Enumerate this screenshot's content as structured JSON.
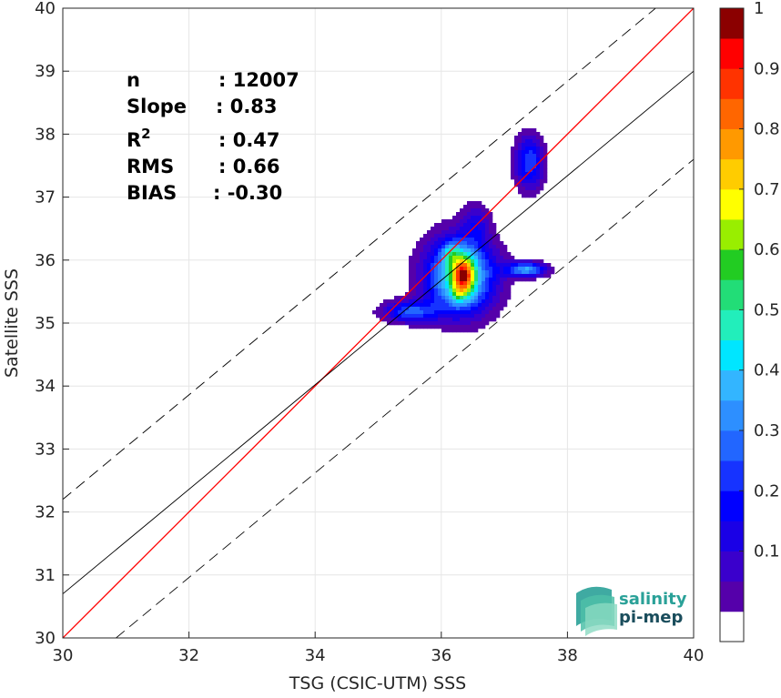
{
  "chart_data": {
    "type": "contour",
    "xlabel": "TSG (CSIC-UTM) SSS",
    "ylabel": "Satellite SSS",
    "xlim": [
      30,
      40
    ],
    "ylim": [
      30,
      40
    ],
    "xticks": [
      "30",
      "32",
      "34",
      "36",
      "38",
      "40"
    ],
    "yticks": [
      "30",
      "31",
      "32",
      "33",
      "34",
      "35",
      "36",
      "37",
      "38",
      "39",
      "40"
    ],
    "grid": true,
    "colorbar": {
      "ticks": [
        "0.1",
        "0.2",
        "0.3",
        "0.4",
        "0.5",
        "0.6",
        "0.7",
        "0.8",
        "0.9",
        "1"
      ],
      "tick_values": [
        0.1,
        0.2,
        0.3,
        0.4,
        0.5,
        0.6,
        0.7,
        0.8,
        0.9,
        1.0
      ],
      "levels": 20,
      "colors": [
        "#ffffff",
        "#5500aa",
        "#3a00cc",
        "#1a00e6",
        "#0000ff",
        "#1633ff",
        "#2266ff",
        "#2d8fff",
        "#33b5ff",
        "#00e6ff",
        "#22eebb",
        "#22dd77",
        "#22cc22",
        "#99ee00",
        "#ffff00",
        "#ffcc00",
        "#ff9900",
        "#ff6600",
        "#ff3300",
        "#ff0000",
        "#8b0000"
      ]
    },
    "stats": [
      {
        "label": "n",
        "value": ": 12007"
      },
      {
        "label": "Slope",
        "value": ": 0.83"
      },
      {
        "label": "R",
        "sup": "2",
        "value": ": 0.47"
      },
      {
        "label": "RMS",
        "value": ": 0.66"
      },
      {
        "label": "BIAS",
        "value": ": -0.30"
      }
    ],
    "lines": [
      {
        "kind": "identity",
        "color": "#ff0000",
        "slope": 1.0,
        "intercept": 0.0
      },
      {
        "kind": "regression",
        "color": "#000000",
        "slope": 0.83,
        "intercept": 5.8
      },
      {
        "kind": "upper-bound",
        "color": "#000000",
        "dash": true,
        "slope": 0.83,
        "intercept": 7.3
      },
      {
        "kind": "lower-bound",
        "color": "#000000",
        "dash": true,
        "slope": 0.83,
        "intercept": 4.4
      }
    ],
    "density_blobs": [
      {
        "x": 36.3,
        "y": 35.75,
        "sx": 0.38,
        "sy": 0.42,
        "amp": 0.55
      },
      {
        "x": 36.35,
        "y": 35.75,
        "sx": 0.12,
        "sy": 0.22,
        "amp": 0.5
      },
      {
        "x": 36.15,
        "y": 36.12,
        "sx": 0.09,
        "sy": 0.12,
        "amp": 0.2
      },
      {
        "x": 36.25,
        "y": 35.45,
        "sx": 0.07,
        "sy": 0.1,
        "amp": 0.12
      },
      {
        "x": 35.5,
        "y": 35.18,
        "sx": 0.3,
        "sy": 0.12,
        "amp": 0.3
      },
      {
        "x": 36.55,
        "y": 36.6,
        "sx": 0.15,
        "sy": 0.22,
        "amp": 0.14
      },
      {
        "x": 37.35,
        "y": 35.85,
        "sx": 0.22,
        "sy": 0.08,
        "amp": 0.4
      },
      {
        "x": 37.4,
        "y": 37.55,
        "sx": 0.16,
        "sy": 0.3,
        "amp": 0.3
      }
    ]
  },
  "logo": {
    "line1": "salinity",
    "line2": "pi-mep",
    "color1": "#2aa198",
    "color2": "#1a4d5c"
  }
}
